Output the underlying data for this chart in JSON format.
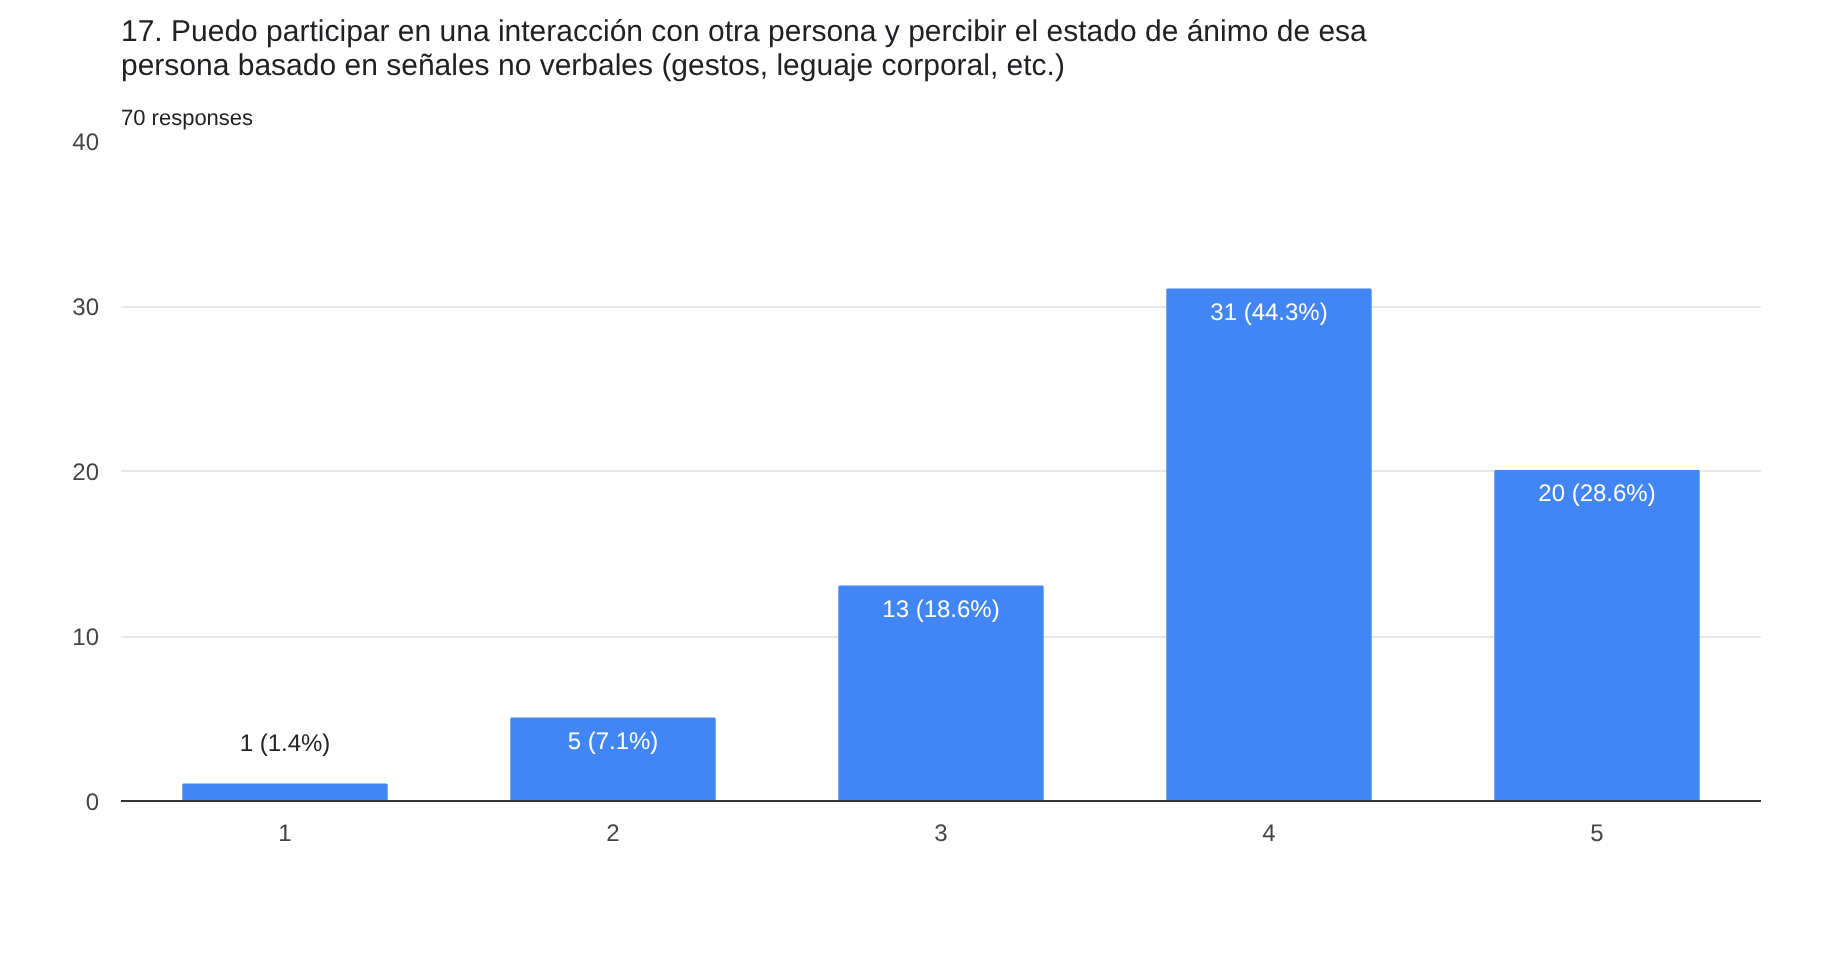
{
  "chart_data": {
    "type": "bar",
    "title": "17. Puedo participar en una interacción con otra persona y percibir el estado de ánimo de esa persona basado en señales no verbales (gestos, leguaje corporal, etc.)",
    "subtitle": "70 responses",
    "categories": [
      "1",
      "2",
      "3",
      "4",
      "5"
    ],
    "values": [
      1,
      5,
      13,
      31,
      20
    ],
    "value_labels": [
      "1 (1.4%)",
      "5 (7.1%)",
      "13 (18.6%)",
      "31 (44.3%)",
      "20 (28.6%)"
    ],
    "color": "#4285f4",
    "ylim": [
      0,
      40
    ],
    "yticks": [
      0,
      10,
      20,
      30,
      40
    ],
    "grid": "y"
  }
}
